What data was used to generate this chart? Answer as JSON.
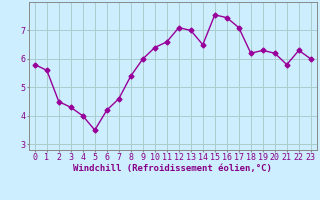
{
  "x": [
    0,
    1,
    2,
    3,
    4,
    5,
    6,
    7,
    8,
    9,
    10,
    11,
    12,
    13,
    14,
    15,
    16,
    17,
    18,
    19,
    20,
    21,
    22,
    23
  ],
  "y": [
    5.8,
    5.6,
    4.5,
    4.3,
    4.0,
    3.5,
    4.2,
    4.6,
    5.4,
    6.0,
    6.4,
    6.6,
    7.1,
    7.0,
    6.5,
    7.55,
    7.45,
    7.1,
    6.2,
    6.3,
    6.2,
    5.8,
    6.3,
    6.0
  ],
  "line_color": "#990099",
  "marker": "D",
  "marker_size": 2.5,
  "background_color": "#cceeff",
  "grid_color": "#aacccc",
  "xlabel": "Windchill (Refroidissement éolien,°C)",
  "xlabel_fontsize": 6.5,
  "tick_fontsize": 6.0,
  "ylim": [
    2.8,
    8.0
  ],
  "yticks": [
    3,
    4,
    5,
    6,
    7
  ],
  "xticks": [
    0,
    1,
    2,
    3,
    4,
    5,
    6,
    7,
    8,
    9,
    10,
    11,
    12,
    13,
    14,
    15,
    16,
    17,
    18,
    19,
    20,
    21,
    22,
    23
  ],
  "linewidth": 1.0,
  "axis_color": "#880088",
  "spine_color": "#888888"
}
